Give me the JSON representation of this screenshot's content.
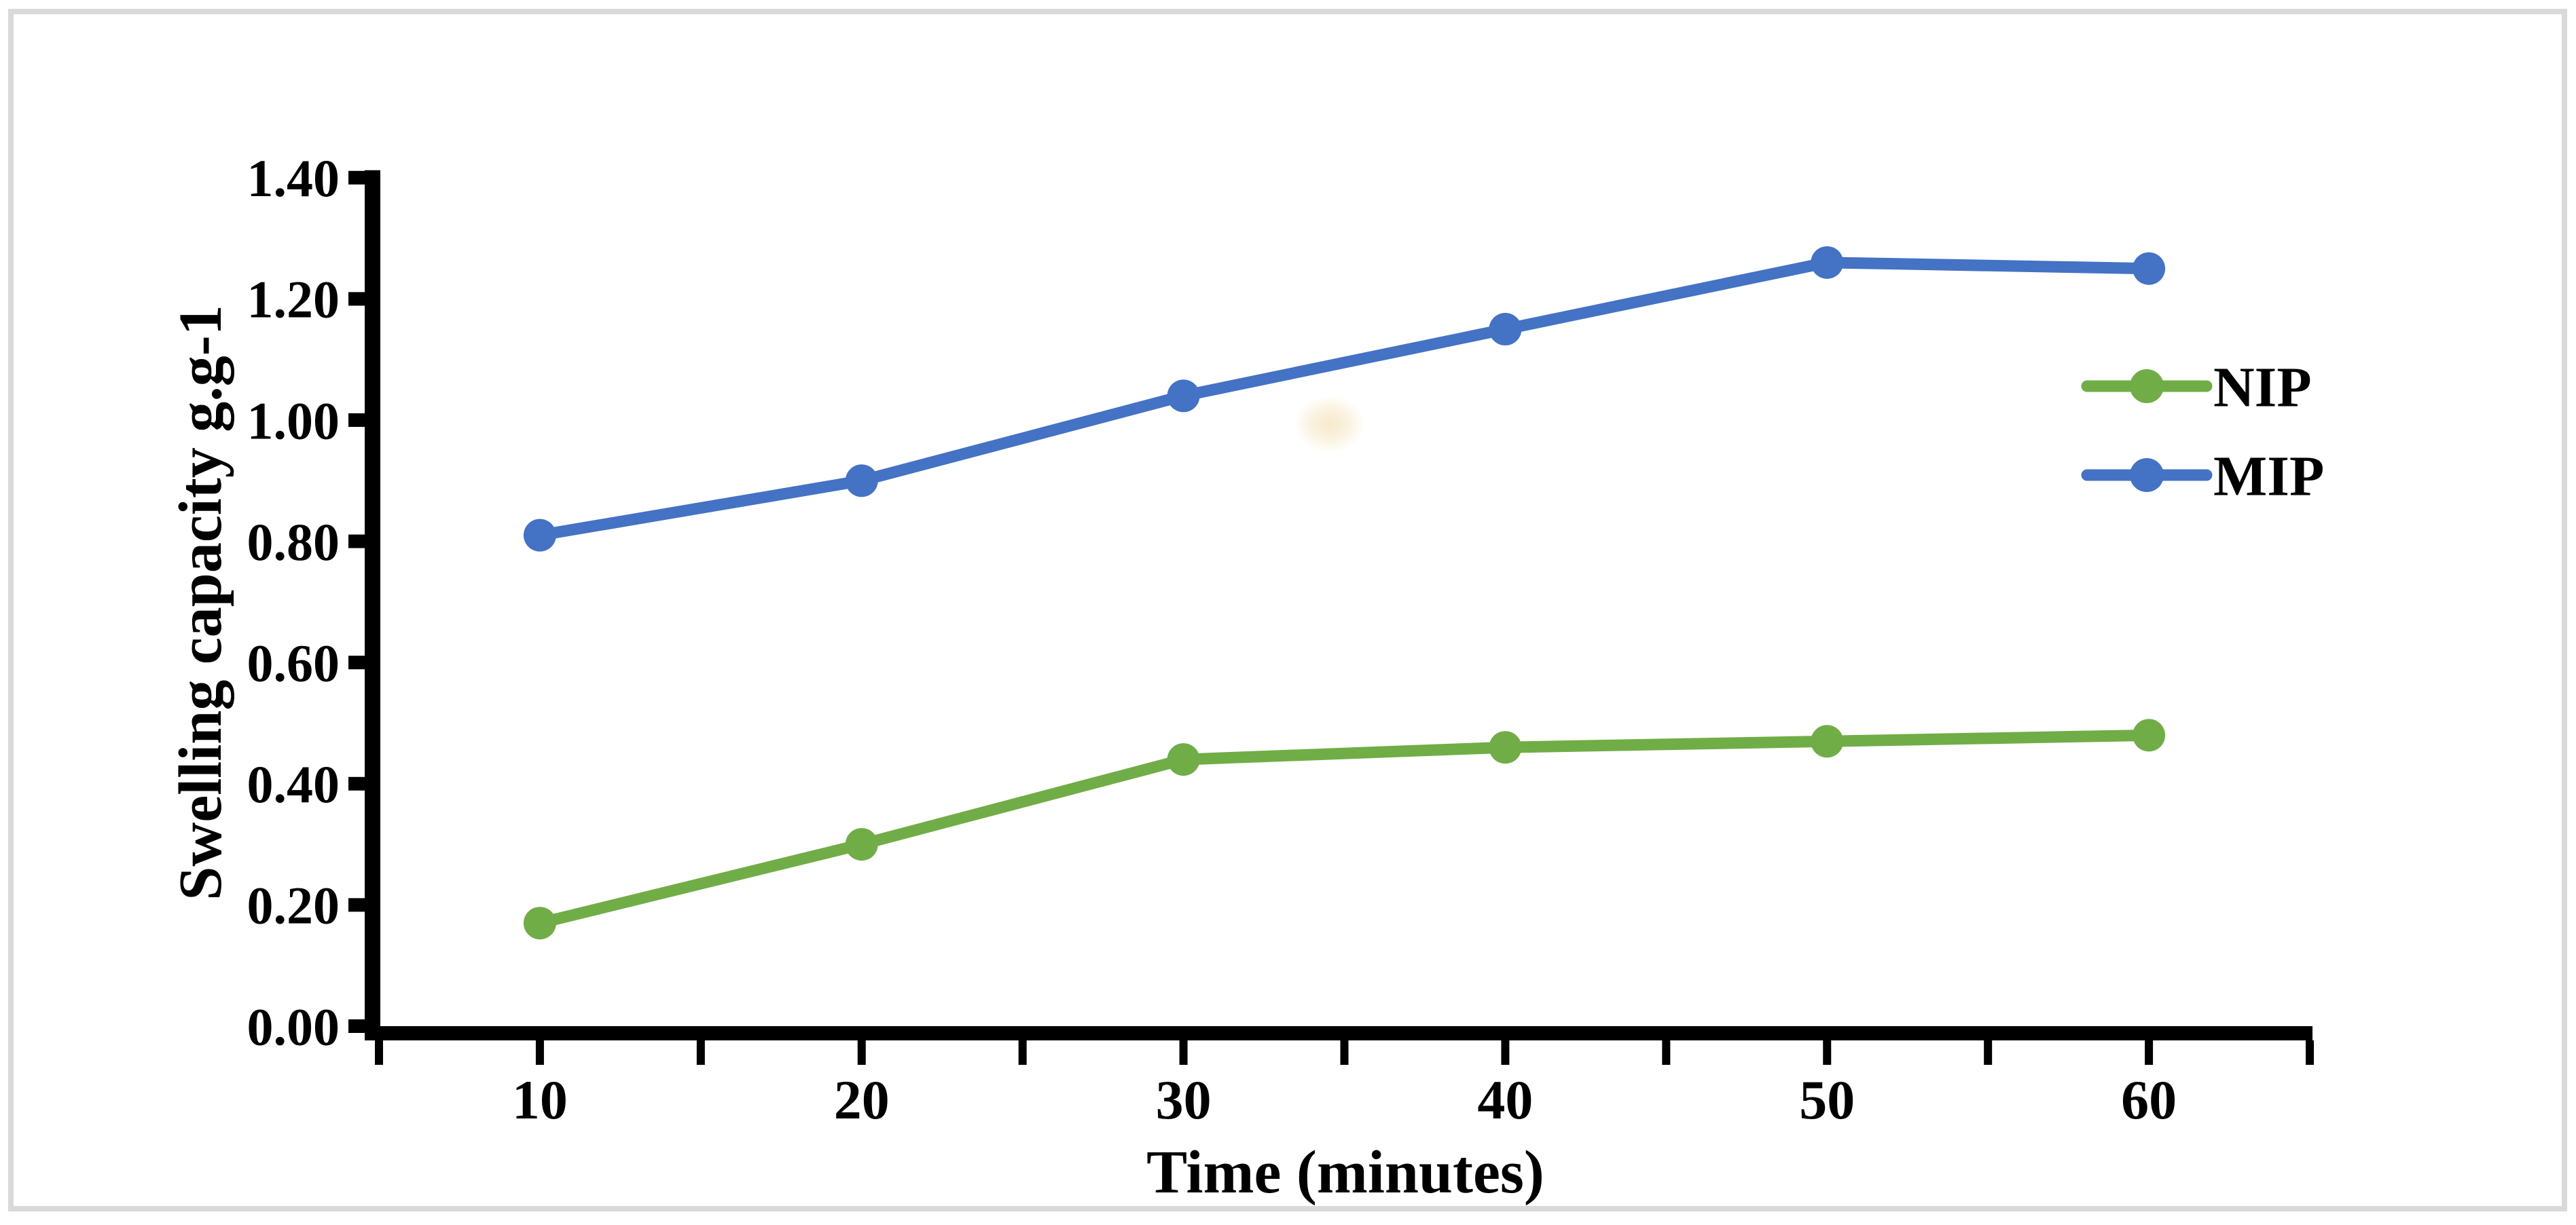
{
  "figure": {
    "background_color": "#FFFFFF",
    "border_color": "#D9D9D9",
    "axis_color": "#000000",
    "smudge_color": "#F6E7C5"
  },
  "chart_data": {
    "type": "line",
    "title": "",
    "xlabel": "Time (minutes)",
    "ylabel": "Swelling capacity g.g-1",
    "categories": [
      10,
      20,
      30,
      40,
      50,
      60
    ],
    "x_tick_labels": [
      "10",
      "20",
      "30",
      "40",
      "50",
      "60"
    ],
    "y_tick_labels": [
      "0.00",
      "0.20",
      "0.40",
      "0.60",
      "0.80",
      "1.00",
      "1.20",
      "1.40"
    ],
    "ylim": [
      0,
      1.4
    ],
    "y_tick_step": 0.2,
    "grid": false,
    "legend_position": "center-right",
    "series": [
      {
        "name": "NIP",
        "color": "#70AD47",
        "marker": "circle",
        "values": [
          0.17,
          0.3,
          0.44,
          0.46,
          0.47,
          0.48
        ]
      },
      {
        "name": "MIP",
        "color": "#4472C4",
        "marker": "circle",
        "values": [
          0.81,
          0.9,
          1.04,
          1.15,
          1.26,
          1.25
        ]
      }
    ]
  }
}
